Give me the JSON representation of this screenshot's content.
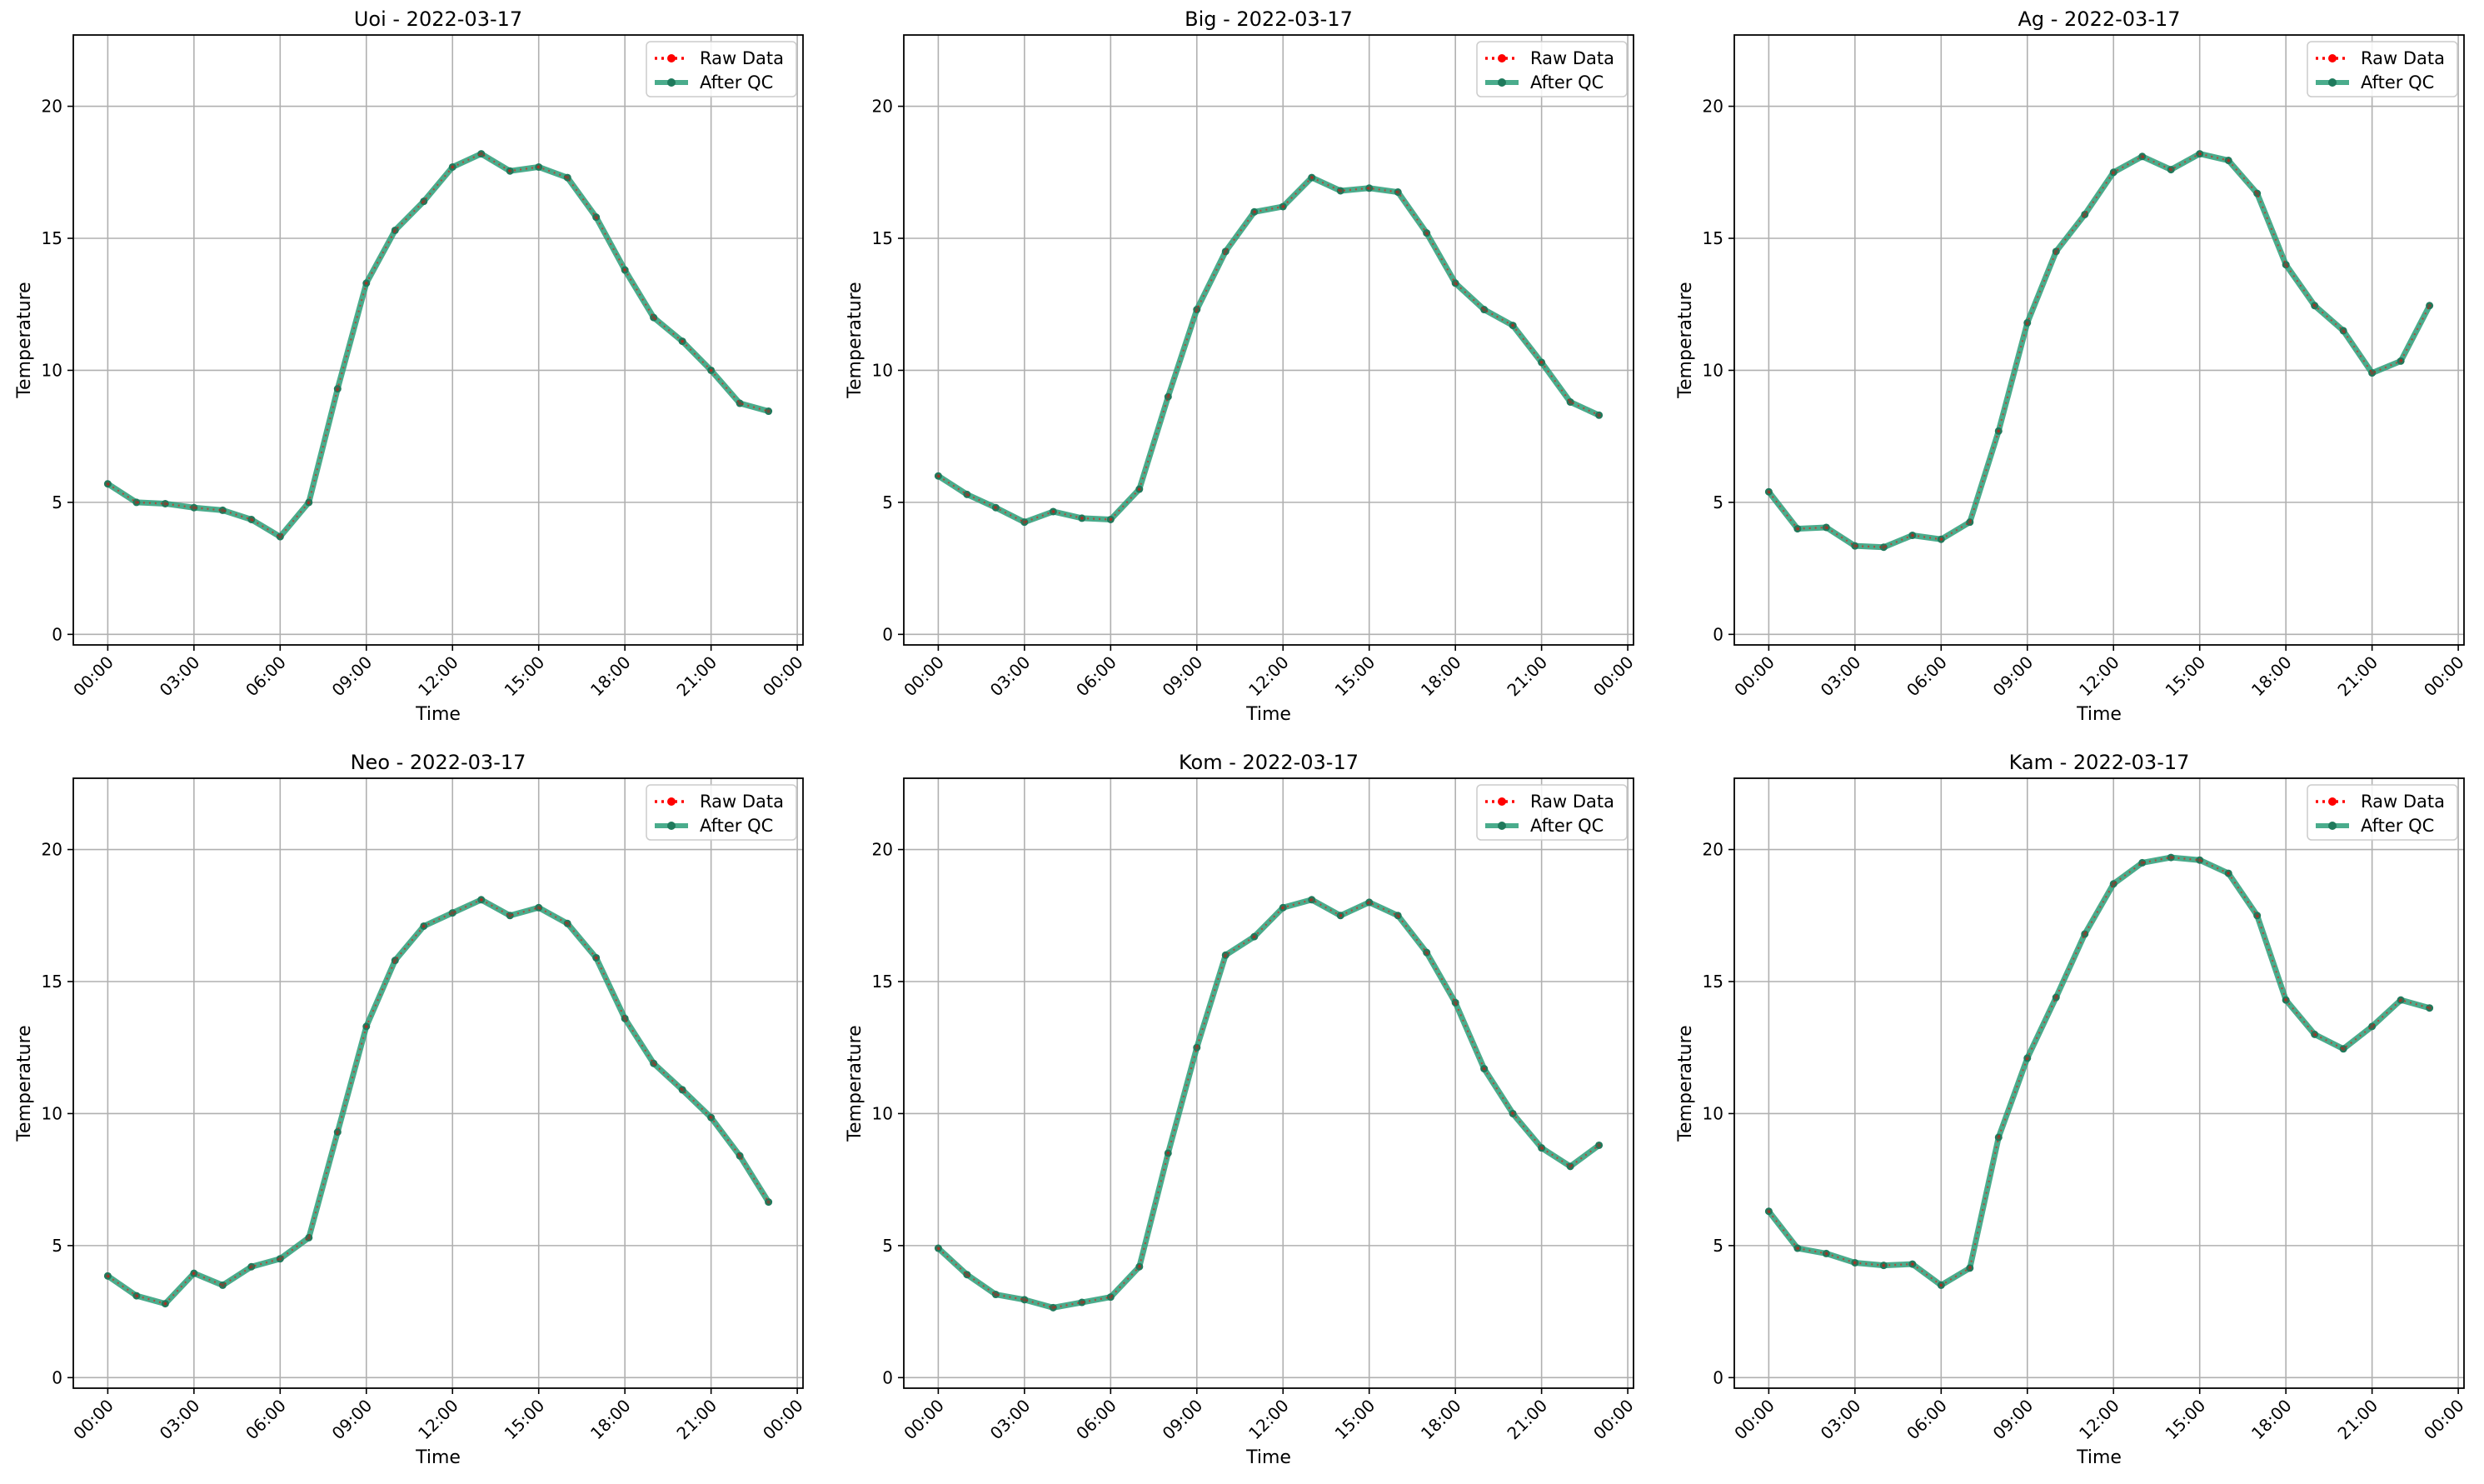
{
  "colors": {
    "raw": "#ff0000",
    "qc": "#2a9d78",
    "qc_marker": "#1f7a5c",
    "grid": "#b0b0b0",
    "axis": "#000000"
  },
  "legend": {
    "raw_label": "Raw Data",
    "qc_label": "After QC"
  },
  "chart_data": [
    {
      "type": "line",
      "title": "Uoi - 2022-03-17",
      "xlabel": "Time",
      "ylabel": "Temperature",
      "x_ticks": [
        "00:00",
        "03:00",
        "06:00",
        "09:00",
        "12:00",
        "15:00",
        "18:00",
        "21:00",
        "00:00"
      ],
      "y_ticks": [
        0,
        5,
        10,
        15,
        20
      ],
      "ylim": [
        -0.4,
        22.7
      ],
      "grid": true,
      "legend_position": "top-right",
      "hours": [
        0,
        1,
        2,
        3,
        4,
        5,
        6,
        7,
        8,
        9,
        10,
        11,
        12,
        13,
        14,
        15,
        16,
        17,
        18,
        19,
        20,
        21,
        22,
        23
      ],
      "series": [
        {
          "name": "Raw Data",
          "values": [
            5.7,
            5.0,
            4.95,
            4.8,
            4.7,
            4.35,
            3.7,
            5.0,
            9.3,
            13.3,
            15.3,
            16.4,
            17.7,
            18.2,
            17.55,
            17.7,
            17.3,
            15.8,
            13.8,
            12.0,
            11.1,
            10.0,
            8.75,
            8.45
          ]
        },
        {
          "name": "After QC",
          "values": [
            5.7,
            5.0,
            4.95,
            4.8,
            4.7,
            4.35,
            3.7,
            5.0,
            9.3,
            13.3,
            15.3,
            16.4,
            17.7,
            18.2,
            17.55,
            17.7,
            17.3,
            15.8,
            13.8,
            12.0,
            11.1,
            10.0,
            8.75,
            8.45
          ]
        }
      ]
    },
    {
      "type": "line",
      "title": "Big - 2022-03-17",
      "xlabel": "Time",
      "ylabel": "Temperature",
      "x_ticks": [
        "00:00",
        "03:00",
        "06:00",
        "09:00",
        "12:00",
        "15:00",
        "18:00",
        "21:00",
        "00:00"
      ],
      "y_ticks": [
        0,
        5,
        10,
        15,
        20
      ],
      "ylim": [
        -0.4,
        22.7
      ],
      "grid": true,
      "legend_position": "top-right",
      "hours": [
        0,
        1,
        2,
        3,
        4,
        5,
        6,
        7,
        8,
        9,
        10,
        11,
        12,
        13,
        14,
        15,
        16,
        17,
        18,
        19,
        20,
        21,
        22,
        23
      ],
      "series": [
        {
          "name": "Raw Data",
          "values": [
            6.0,
            5.3,
            4.8,
            4.25,
            4.65,
            4.4,
            4.35,
            5.5,
            9.0,
            12.3,
            14.5,
            16.0,
            16.2,
            17.3,
            16.8,
            16.9,
            16.75,
            15.2,
            13.3,
            12.3,
            11.7,
            10.3,
            8.8,
            8.3
          ]
        },
        {
          "name": "After QC",
          "values": [
            6.0,
            5.3,
            4.8,
            4.25,
            4.65,
            4.4,
            4.35,
            5.5,
            9.0,
            12.3,
            14.5,
            16.0,
            16.2,
            17.3,
            16.8,
            16.9,
            16.75,
            15.2,
            13.3,
            12.3,
            11.7,
            10.3,
            8.8,
            8.3
          ]
        }
      ]
    },
    {
      "type": "line",
      "title": "Ag - 2022-03-17",
      "xlabel": "Time",
      "ylabel": "Temperature",
      "x_ticks": [
        "00:00",
        "03:00",
        "06:00",
        "09:00",
        "12:00",
        "15:00",
        "18:00",
        "21:00",
        "00:00"
      ],
      "y_ticks": [
        0,
        5,
        10,
        15,
        20
      ],
      "ylim": [
        -0.4,
        22.7
      ],
      "grid": true,
      "legend_position": "top-right",
      "hours": [
        0,
        1,
        2,
        3,
        4,
        5,
        6,
        7,
        8,
        9,
        10,
        11,
        12,
        13,
        14,
        15,
        16,
        17,
        18,
        19,
        20,
        21,
        22,
        23
      ],
      "series": [
        {
          "name": "Raw Data",
          "values": [
            5.4,
            4.0,
            4.05,
            3.35,
            3.3,
            3.75,
            3.6,
            4.25,
            7.7,
            11.8,
            14.5,
            15.9,
            17.5,
            18.1,
            17.6,
            18.2,
            17.95,
            16.7,
            14.0,
            12.45,
            11.5,
            9.9,
            10.35,
            12.45
          ]
        },
        {
          "name": "After QC",
          "values": [
            5.4,
            4.0,
            4.05,
            3.35,
            3.3,
            3.75,
            3.6,
            4.25,
            7.7,
            11.8,
            14.5,
            15.9,
            17.5,
            18.1,
            17.6,
            18.2,
            17.95,
            16.7,
            14.0,
            12.45,
            11.5,
            9.9,
            10.35,
            12.45
          ]
        }
      ]
    },
    {
      "type": "line",
      "title": "Neo - 2022-03-17",
      "xlabel": "Time",
      "ylabel": "Temperature",
      "x_ticks": [
        "00:00",
        "03:00",
        "06:00",
        "09:00",
        "12:00",
        "15:00",
        "18:00",
        "21:00",
        "00:00"
      ],
      "y_ticks": [
        0,
        5,
        10,
        15,
        20
      ],
      "ylim": [
        -0.4,
        22.7
      ],
      "grid": true,
      "legend_position": "top-right",
      "hours": [
        0,
        1,
        2,
        3,
        4,
        5,
        6,
        7,
        8,
        9,
        10,
        11,
        12,
        13,
        14,
        15,
        16,
        17,
        18,
        19,
        20,
        21,
        22,
        23
      ],
      "series": [
        {
          "name": "Raw Data",
          "values": [
            3.85,
            3.1,
            2.8,
            3.95,
            3.5,
            4.2,
            4.5,
            5.3,
            9.3,
            13.3,
            15.8,
            17.1,
            17.6,
            18.1,
            17.5,
            17.8,
            17.2,
            15.9,
            13.6,
            11.9,
            10.9,
            9.85,
            8.4,
            6.65
          ]
        },
        {
          "name": "After QC",
          "values": [
            3.85,
            3.1,
            2.8,
            3.95,
            3.5,
            4.2,
            4.5,
            5.3,
            9.3,
            13.3,
            15.8,
            17.1,
            17.6,
            18.1,
            17.5,
            17.8,
            17.2,
            15.9,
            13.6,
            11.9,
            10.9,
            9.85,
            8.4,
            6.65
          ]
        }
      ]
    },
    {
      "type": "line",
      "title": "Kom - 2022-03-17",
      "xlabel": "Time",
      "ylabel": "Temperature",
      "x_ticks": [
        "00:00",
        "03:00",
        "06:00",
        "09:00",
        "12:00",
        "15:00",
        "18:00",
        "21:00",
        "00:00"
      ],
      "y_ticks": [
        0,
        5,
        10,
        15,
        20
      ],
      "ylim": [
        -0.4,
        22.7
      ],
      "grid": true,
      "legend_position": "top-right",
      "hours": [
        0,
        1,
        2,
        3,
        4,
        5,
        6,
        7,
        8,
        9,
        10,
        11,
        12,
        13,
        14,
        15,
        16,
        17,
        18,
        19,
        20,
        21,
        22,
        23
      ],
      "series": [
        {
          "name": "Raw Data",
          "values": [
            4.9,
            3.9,
            3.15,
            2.95,
            2.65,
            2.85,
            3.05,
            4.2,
            8.5,
            12.5,
            16.0,
            16.7,
            17.8,
            18.1,
            17.5,
            18.0,
            17.5,
            16.1,
            14.2,
            11.7,
            10.0,
            8.7,
            8.0,
            8.8
          ]
        },
        {
          "name": "After QC",
          "values": [
            4.9,
            3.9,
            3.15,
            2.95,
            2.65,
            2.85,
            3.05,
            4.2,
            8.5,
            12.5,
            16.0,
            16.7,
            17.8,
            18.1,
            17.5,
            18.0,
            17.5,
            16.1,
            14.2,
            11.7,
            10.0,
            8.7,
            8.0,
            8.8
          ]
        }
      ]
    },
    {
      "type": "line",
      "title": "Kam - 2022-03-17",
      "xlabel": "Time",
      "ylabel": "Temperature",
      "x_ticks": [
        "00:00",
        "03:00",
        "06:00",
        "09:00",
        "12:00",
        "15:00",
        "18:00",
        "21:00",
        "00:00"
      ],
      "y_ticks": [
        0,
        5,
        10,
        15,
        20
      ],
      "ylim": [
        -0.4,
        22.7
      ],
      "grid": true,
      "legend_position": "top-right",
      "hours": [
        0,
        1,
        2,
        3,
        4,
        5,
        6,
        7,
        8,
        9,
        10,
        11,
        12,
        13,
        14,
        15,
        16,
        17,
        18,
        19,
        20,
        21,
        22,
        23
      ],
      "series": [
        {
          "name": "Raw Data",
          "values": [
            6.3,
            4.9,
            4.7,
            4.35,
            4.25,
            4.3,
            3.5,
            4.15,
            9.1,
            12.1,
            14.4,
            16.8,
            18.7,
            19.5,
            19.7,
            19.6,
            19.1,
            17.5,
            14.3,
            13.0,
            12.45,
            13.3,
            14.3,
            14.0
          ]
        },
        {
          "name": "After QC",
          "values": [
            6.3,
            4.9,
            4.7,
            4.35,
            4.25,
            4.3,
            3.5,
            4.15,
            9.1,
            12.1,
            14.4,
            16.8,
            18.7,
            19.5,
            19.7,
            19.6,
            19.1,
            17.5,
            14.3,
            13.0,
            12.45,
            13.3,
            14.3,
            14.0
          ]
        }
      ]
    }
  ]
}
